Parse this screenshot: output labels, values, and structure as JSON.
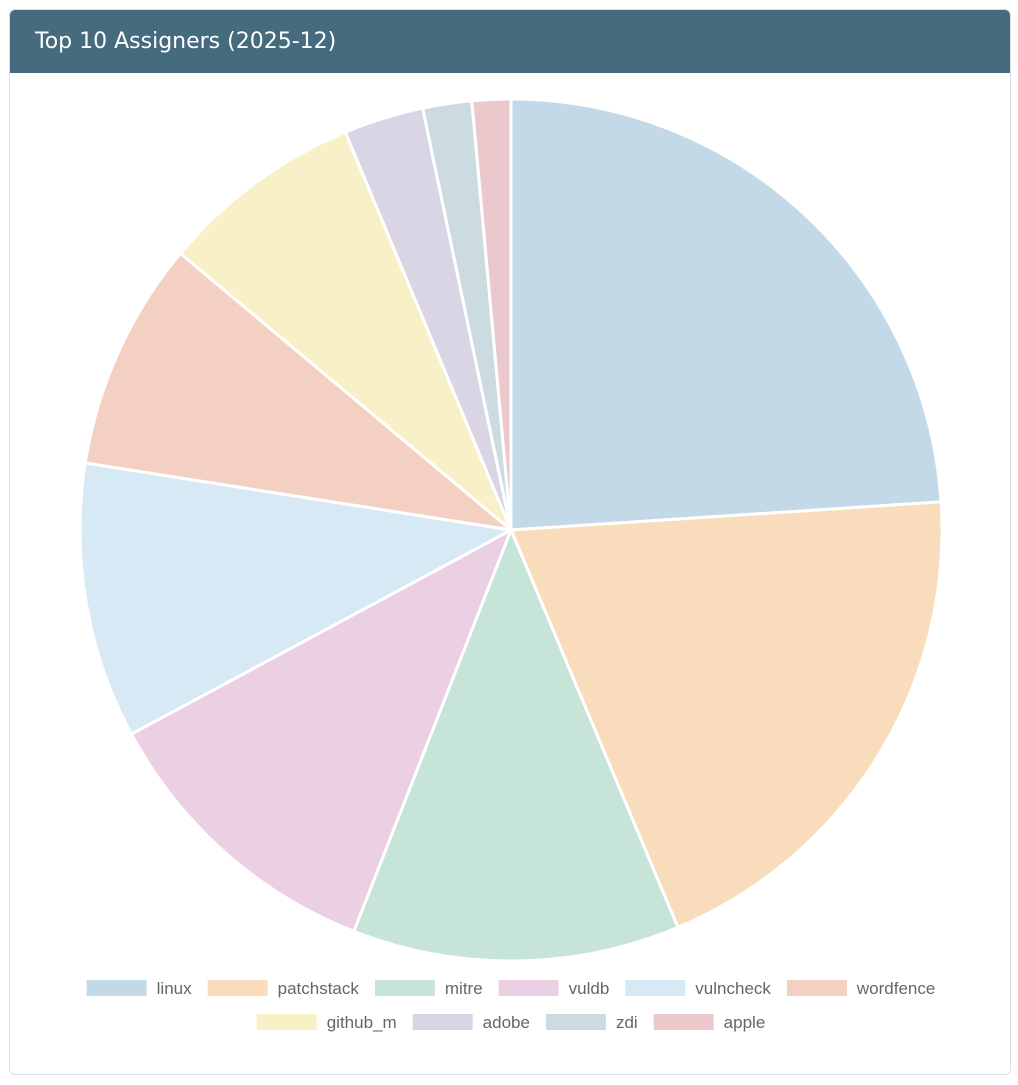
{
  "header": {
    "title": "Top 10 Assigners (2025-12)"
  },
  "chart_data": {
    "type": "pie",
    "title": "Top 10 Assigners (2025-12)",
    "legend_position": "bottom",
    "series": [
      {
        "name": "linux",
        "value": 24.8,
        "color": "#c3d9e8"
      },
      {
        "name": "patchstack",
        "value": 20.4,
        "color": "#f8dcbc"
      },
      {
        "name": "mitre",
        "value": 12.7,
        "color": "#c7e4d8"
      },
      {
        "name": "vuldb",
        "value": 11.6,
        "color": "#ebd0e3"
      },
      {
        "name": "vulncheck",
        "value": 10.7,
        "color": "#d6e9f5"
      },
      {
        "name": "wordfence",
        "value": 8.9,
        "color": "#f3d0c2"
      },
      {
        "name": "github_m",
        "value": 7.9,
        "color": "#f8f0c6"
      },
      {
        "name": "adobe",
        "value": 3.1,
        "color": "#dad5e5"
      },
      {
        "name": "zdi",
        "value": 1.9,
        "color": "#ccdbe0"
      },
      {
        "name": "apple",
        "value": 1.5,
        "color": "#ebc8cb"
      }
    ]
  }
}
